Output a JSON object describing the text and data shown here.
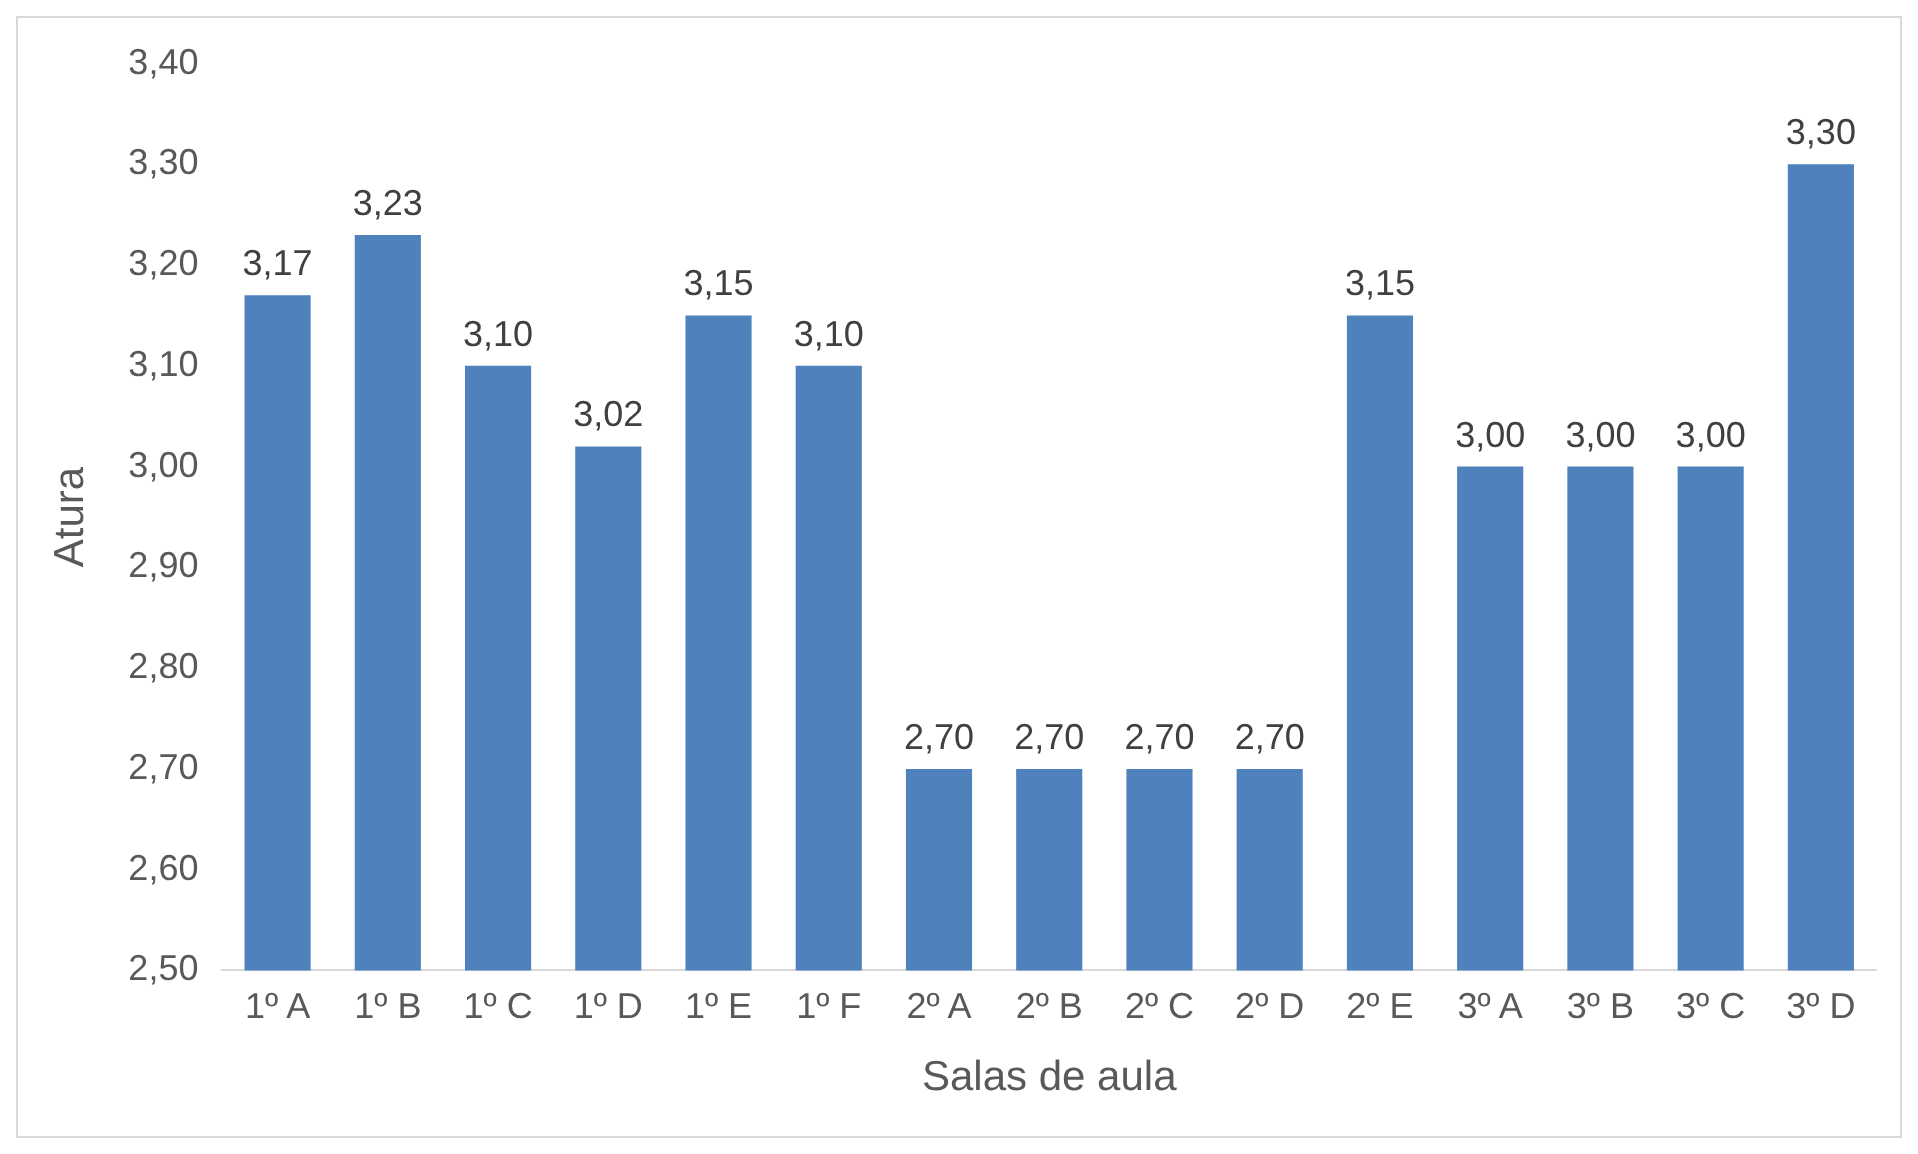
{
  "chart_data": {
    "type": "bar",
    "xlabel": "Salas de aula",
    "ylabel": "Atura",
    "categories": [
      "1º A",
      "1º B",
      "1º C",
      "1º D",
      "1º E",
      "1º F",
      "2º A",
      "2º B",
      "2º C",
      "2º D",
      "2º E",
      "3º A",
      "3º B",
      "3º C",
      "3º D"
    ],
    "values": [
      3.17,
      3.23,
      3.1,
      3.02,
      3.15,
      3.1,
      2.7,
      2.7,
      2.7,
      2.7,
      3.15,
      3.0,
      3.0,
      3.0,
      3.3
    ],
    "value_labels": [
      "3,17",
      "3,23",
      "3,10",
      "3,02",
      "3,15",
      "3,10",
      "2,70",
      "2,70",
      "2,70",
      "2,70",
      "3,15",
      "3,00",
      "3,00",
      "3,00",
      "3,30"
    ],
    "color": "#4f81bd",
    "ylim": [
      2.5,
      3.4
    ],
    "yticks": [
      {
        "value": 2.5,
        "label": "2,50"
      },
      {
        "value": 2.6,
        "label": "2,60"
      },
      {
        "value": 2.7,
        "label": "2,70"
      },
      {
        "value": 2.8,
        "label": "2,80"
      },
      {
        "value": 2.9,
        "label": "2,90"
      },
      {
        "value": 3.0,
        "label": "3,00"
      },
      {
        "value": 3.1,
        "label": "3,10"
      },
      {
        "value": 3.2,
        "label": "3,20"
      },
      {
        "value": 3.3,
        "label": "3,30"
      },
      {
        "value": 3.4,
        "label": "3,40"
      }
    ],
    "grid": false,
    "legend": false
  }
}
